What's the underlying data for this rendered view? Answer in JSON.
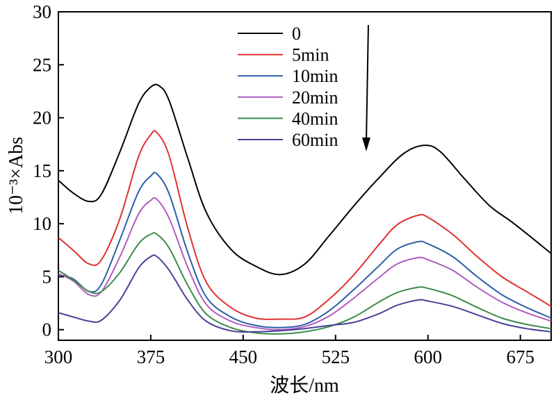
{
  "chart_data": {
    "type": "line",
    "title": "",
    "xlabel": "波长/nm",
    "ylabel": "10⁻³×Abs",
    "xlim": [
      300,
      700
    ],
    "ylim": [
      -1,
      30
    ],
    "xticks": [
      300,
      375,
      450,
      525,
      600,
      675
    ],
    "yticks": [
      0,
      5,
      10,
      15,
      20,
      25,
      30
    ],
    "legend_position": "top-center",
    "annotation": "downward arrow indicating decreasing absorbance over time",
    "series": [
      {
        "name": "0",
        "color": "#000000",
        "x": [
          300,
          312,
          325,
          335,
          350,
          365,
          375,
          382,
          390,
          405,
          420,
          440,
          460,
          480,
          500,
          520,
          540,
          560,
          580,
          597,
          610,
          630,
          650,
          670,
          700
        ],
        "y": [
          14.1,
          12.9,
          12.1,
          12.8,
          16.8,
          21.3,
          22.9,
          23.0,
          21.6,
          16.2,
          11.1,
          7.6,
          6.0,
          5.2,
          6.2,
          8.9,
          11.7,
          14.3,
          16.6,
          17.4,
          16.8,
          14.2,
          11.7,
          10.0,
          7.2
        ]
      },
      {
        "name": "5min",
        "color": "#e03030",
        "x": [
          300,
          312,
          325,
          335,
          350,
          365,
          375,
          380,
          390,
          405,
          420,
          440,
          460,
          480,
          500,
          520,
          540,
          560,
          575,
          592,
          600,
          620,
          640,
          660,
          680,
          700
        ],
        "y": [
          8.7,
          7.5,
          6.2,
          6.6,
          10.5,
          16.3,
          18.4,
          18.6,
          16.4,
          9.6,
          4.5,
          2.1,
          1.1,
          1.0,
          1.2,
          2.9,
          5.2,
          8.0,
          9.9,
          10.8,
          10.6,
          9.0,
          6.9,
          5.0,
          3.6,
          2.2
        ]
      },
      {
        "name": "10min",
        "color": "#2a5ea8",
        "x": [
          300,
          312,
          325,
          335,
          350,
          365,
          375,
          380,
          390,
          405,
          420,
          440,
          460,
          480,
          500,
          520,
          540,
          560,
          575,
          592,
          600,
          620,
          640,
          660,
          680,
          700
        ],
        "y": [
          5.2,
          4.8,
          3.6,
          4.3,
          8.5,
          13.0,
          14.5,
          14.7,
          12.8,
          7.3,
          3.1,
          1.2,
          0.4,
          0.2,
          0.5,
          1.8,
          3.8,
          6.0,
          7.6,
          8.3,
          8.1,
          6.9,
          5.0,
          3.3,
          2.1,
          1.1
        ]
      },
      {
        "name": "20min",
        "color": "#b05cc0",
        "x": [
          300,
          312,
          325,
          335,
          350,
          365,
          375,
          380,
          390,
          405,
          420,
          440,
          460,
          480,
          500,
          520,
          540,
          560,
          575,
          592,
          600,
          620,
          640,
          660,
          680,
          700
        ],
        "y": [
          5.3,
          4.6,
          3.3,
          3.6,
          6.9,
          10.9,
          12.2,
          12.3,
          10.5,
          5.9,
          2.4,
          0.8,
          0.2,
          0.0,
          0.3,
          1.3,
          3.0,
          4.9,
          6.2,
          6.8,
          6.6,
          5.6,
          4.0,
          2.6,
          1.6,
          0.8
        ]
      },
      {
        "name": "40min",
        "color": "#3a8a48",
        "x": [
          300,
          312,
          325,
          335,
          350,
          365,
          375,
          380,
          390,
          405,
          420,
          440,
          460,
          480,
          500,
          520,
          540,
          560,
          575,
          592,
          600,
          620,
          640,
          660,
          680,
          700
        ],
        "y": [
          5.6,
          4.7,
          3.6,
          3.6,
          5.4,
          8.1,
          9.0,
          9.0,
          7.7,
          4.2,
          1.5,
          0.2,
          -0.3,
          -0.4,
          -0.2,
          0.3,
          1.2,
          2.6,
          3.5,
          4.0,
          3.9,
          3.2,
          2.1,
          1.1,
          0.5,
          0.1
        ]
      },
      {
        "name": "60min",
        "color": "#4a3f98",
        "x": [
          300,
          312,
          325,
          335,
          350,
          365,
          375,
          380,
          390,
          405,
          420,
          440,
          460,
          480,
          500,
          520,
          540,
          560,
          575,
          592,
          600,
          620,
          640,
          660,
          680,
          700
        ],
        "y": [
          1.6,
          1.2,
          0.8,
          0.9,
          2.8,
          5.8,
          6.9,
          6.9,
          5.6,
          2.8,
          0.8,
          -0.1,
          -0.2,
          -0.1,
          0.1,
          0.4,
          0.7,
          1.5,
          2.3,
          2.8,
          2.7,
          2.2,
          1.4,
          0.6,
          0.1,
          -0.2
        ]
      }
    ]
  }
}
